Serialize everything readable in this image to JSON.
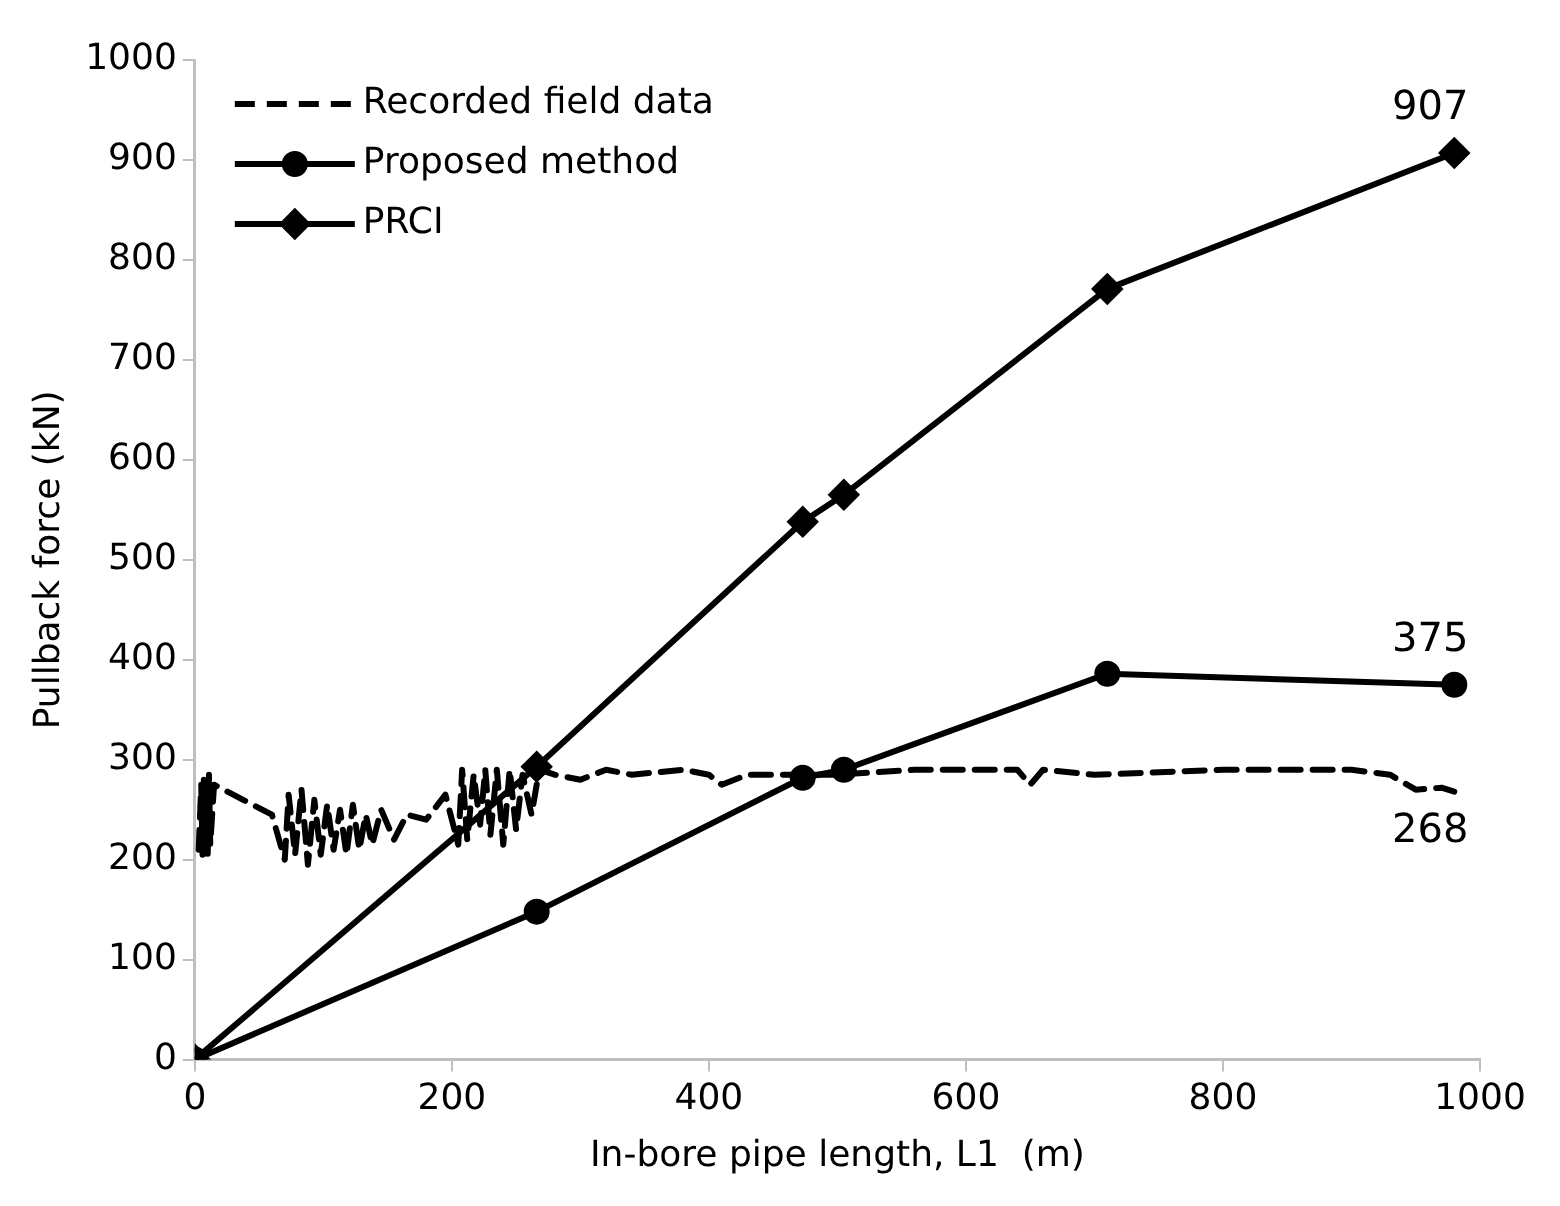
{
  "chart_data": {
    "type": "line",
    "xlabel": "In-bore pipe length, L1  (m)",
    "ylabel": "Pullback force (kN)",
    "xlim": [
      0,
      1000
    ],
    "xticks": [
      0,
      200,
      400,
      600,
      800,
      1000
    ],
    "ylim": [
      0,
      1000
    ],
    "yticks": [
      0,
      100,
      200,
      300,
      400,
      500,
      600,
      700,
      800,
      900,
      1000
    ],
    "grid": false,
    "legend": "top left",
    "series": [
      {
        "name": "Recorded field data",
        "color": "#000000",
        "marker": "none",
        "line_style": "dashed",
        "x": [
          3,
          5,
          6,
          7,
          8,
          9,
          10,
          11,
          12,
          15,
          60,
          70,
          73,
          78,
          83,
          88,
          93,
          98,
          103,
          108,
          113,
          118,
          123,
          128,
          133,
          138,
          145,
          155,
          165,
          180,
          195,
          205,
          208,
          212,
          217,
          222,
          226,
          230,
          235,
          240,
          245,
          250,
          255,
          262,
          268,
          280,
          300,
          320,
          340,
          380,
          400,
          410,
          430,
          500,
          560,
          640,
          650,
          660,
          700,
          800,
          900,
          930,
          950,
          970,
          980
        ],
        "values": [
          210,
          275,
          205,
          280,
          210,
          270,
          200,
          285,
          215,
          275,
          245,
          200,
          265,
          205,
          270,
          195,
          260,
          205,
          255,
          210,
          250,
          205,
          255,
          210,
          245,
          215,
          250,
          220,
          245,
          240,
          265,
          215,
          290,
          220,
          285,
          235,
          290,
          225,
          290,
          215,
          290,
          230,
          285,
          245,
          290,
          285,
          280,
          290,
          285,
          290,
          285,
          275,
          285,
          285,
          290,
          290,
          275,
          290,
          285,
          290,
          290,
          285,
          270,
          272,
          268
        ],
        "value_labels": [
          null,
          null,
          null,
          null,
          null,
          null,
          null,
          null,
          null,
          null,
          null,
          null,
          null,
          null,
          null,
          null,
          null,
          null,
          null,
          null,
          null,
          null,
          null,
          null,
          null,
          null,
          null,
          null,
          null,
          null,
          null,
          null,
          null,
          null,
          null,
          null,
          null,
          null,
          null,
          null,
          null,
          null,
          null,
          null,
          null,
          null,
          null,
          null,
          null,
          null,
          null,
          null,
          null,
          null,
          null,
          null,
          null,
          null,
          null,
          null,
          null,
          null,
          null,
          null,
          "268"
        ]
      },
      {
        "name": "Proposed method",
        "color": "#000000",
        "marker": "circle",
        "line_style": "solid",
        "x": [
          0,
          266,
          473,
          505,
          710,
          980
        ],
        "values": [
          0,
          148,
          282,
          290,
          386,
          375
        ],
        "value_labels": [
          null,
          null,
          null,
          null,
          null,
          "375"
        ]
      },
      {
        "name": "PRCI",
        "color": "#000000",
        "marker": "diamond",
        "line_style": "solid",
        "x": [
          0,
          266,
          473,
          505,
          710,
          980
        ],
        "values": [
          0,
          293,
          538,
          565,
          771,
          907
        ],
        "value_labels": [
          null,
          null,
          null,
          null,
          null,
          "907"
        ]
      }
    ]
  }
}
